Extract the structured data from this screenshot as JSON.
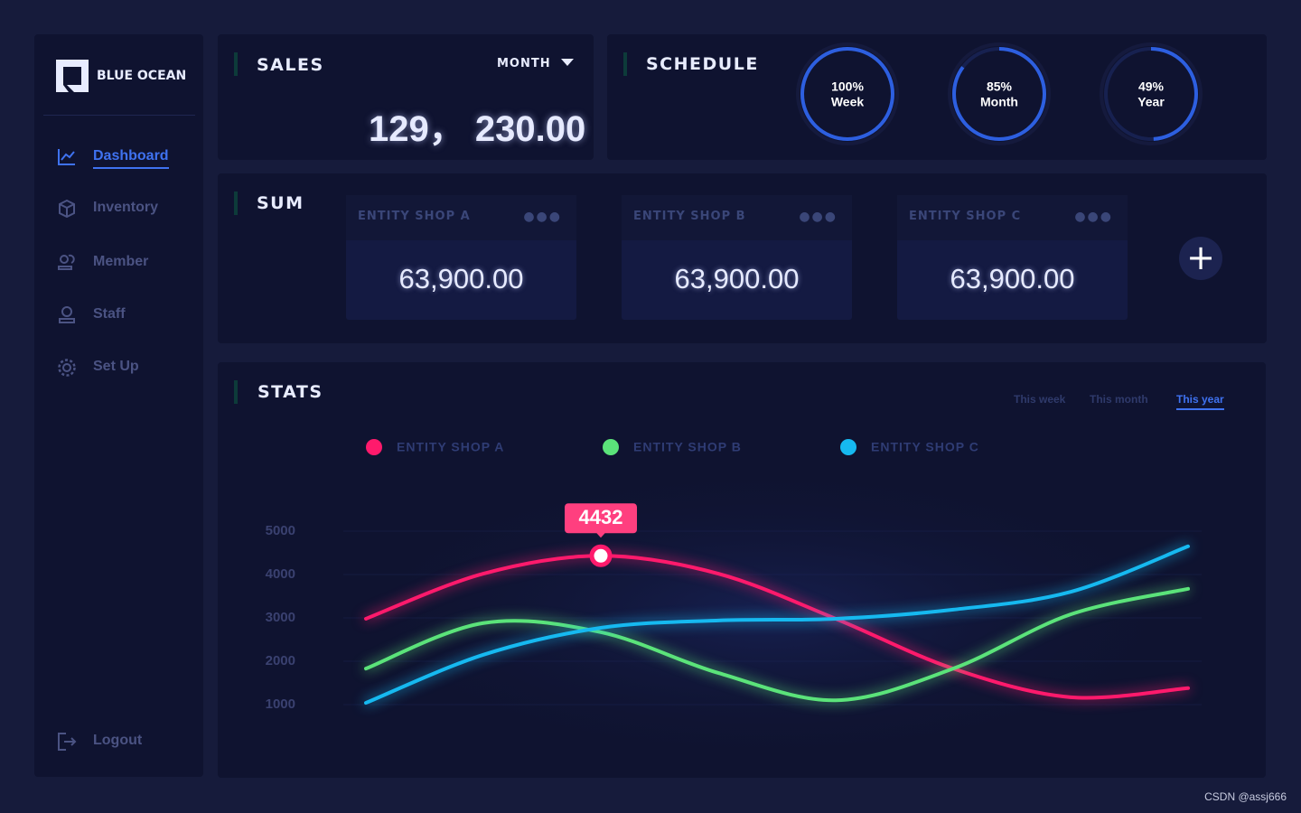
{
  "brand": "BLUE OCEAN",
  "nav": {
    "items": [
      "Dashboard",
      "Inventory",
      "Member",
      "Staff",
      "Set Up"
    ],
    "active": 0,
    "logout": "Logout"
  },
  "sales": {
    "title": "SALES",
    "period": "MONTH",
    "amount": "129， 230.00"
  },
  "schedule": {
    "title": "SCHEDULE",
    "rings": [
      {
        "value": 100,
        "value_label": "100%",
        "name": "Week"
      },
      {
        "value": 85,
        "value_label": "85%",
        "name": "Month"
      },
      {
        "value": 49,
        "value_label": "49%",
        "name": "Year"
      }
    ]
  },
  "sum": {
    "title": "SUM",
    "shops": [
      {
        "name": "ENTITY SHOP A",
        "amount": "63,900.00"
      },
      {
        "name": "ENTITY SHOP B",
        "amount": "63,900.00"
      },
      {
        "name": "ENTITY SHOP C",
        "amount": "63,900.00"
      }
    ]
  },
  "stats": {
    "title": "STATS",
    "tabs": [
      "This week",
      "This month",
      "This year"
    ],
    "active_tab": 2,
    "chart": {
      "type": "line",
      "categories": [
        null,
        null,
        null,
        null,
        null,
        null,
        null,
        null
      ],
      "series": [
        {
          "name": "ENTITY SHOP A",
          "color": "#ff1a6c",
          "values": [
            2980,
            4020,
            4432,
            4020,
            2980,
            1830,
            1170,
            1380
          ]
        },
        {
          "name": "ENTITY SHOP B",
          "color": "#5be37a",
          "values": [
            1830,
            2880,
            2670,
            1730,
            1100,
            1830,
            3080,
            3670
          ]
        },
        {
          "name": "ENTITY SHOP C",
          "color": "#16b9f0",
          "values": [
            1040,
            2150,
            2770,
            2940,
            2980,
            3190,
            3600,
            4650
          ]
        }
      ],
      "ylim": [
        0,
        5500
      ],
      "yticks": [
        1000,
        2000,
        3000,
        4000,
        5000
      ],
      "grid": true,
      "highlight": {
        "series": 0,
        "index": 2
      }
    }
  },
  "watermark": "CSDN @assj666"
}
